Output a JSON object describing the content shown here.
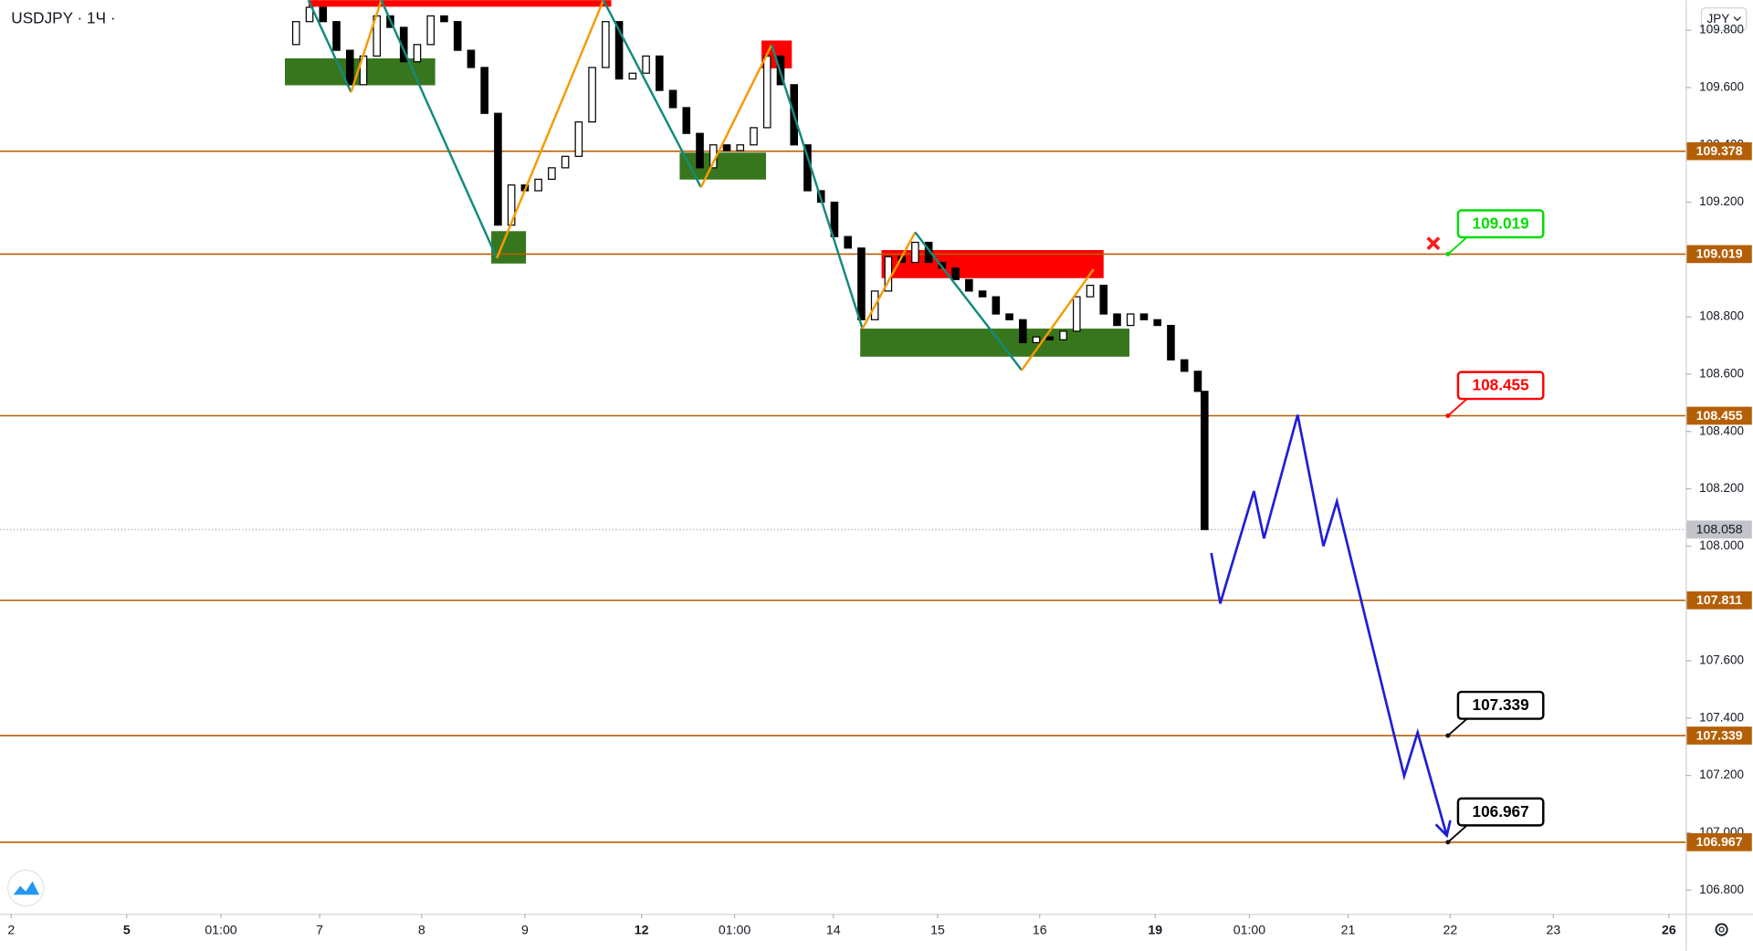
{
  "chart_data": {
    "type": "candlestick",
    "title": "USDJPY · 1Ч ·",
    "currency": "JPY",
    "xlim": [
      0,
      375.75
    ],
    "ylim": [
      106.717,
      109.905
    ],
    "grid": false,
    "xticks": [
      {
        "value": 2.5,
        "label": "2"
      },
      {
        "value": 28.25,
        "label": "5",
        "bold": true
      },
      {
        "value": 49.25,
        "label": "01:00"
      },
      {
        "value": 71.25,
        "label": "7"
      },
      {
        "value": 94,
        "label": "8"
      },
      {
        "value": 117,
        "label": "9"
      },
      {
        "value": 143,
        "label": "12",
        "bold": true
      },
      {
        "value": 163.75,
        "label": "01:00"
      },
      {
        "value": 185.75,
        "label": "14"
      },
      {
        "value": 209,
        "label": "15"
      },
      {
        "value": 231.75,
        "label": "16"
      },
      {
        "value": 257.5,
        "label": "19",
        "bold": true
      },
      {
        "value": 278.5,
        "label": "01:00"
      },
      {
        "value": 300.5,
        "label": "21"
      },
      {
        "value": 323.25,
        "label": "22"
      },
      {
        "value": 346.25,
        "label": "23"
      },
      {
        "value": 372,
        "label": "26",
        "bold": true
      }
    ],
    "yticks": [
      {
        "value": 109.8,
        "label": "109.800"
      },
      {
        "value": 109.6,
        "label": "109.600"
      },
      {
        "value": 109.4,
        "label": "109.400"
      },
      {
        "value": 109.2,
        "label": "109.200"
      },
      {
        "value": 109.0,
        "label": "109.000"
      },
      {
        "value": 108.8,
        "label": "108.800"
      },
      {
        "value": 108.6,
        "label": "108.600"
      },
      {
        "value": 108.4,
        "label": "108.400"
      },
      {
        "value": 108.2,
        "label": "108.200"
      },
      {
        "value": 108.0,
        "label": "108.000"
      },
      {
        "value": 107.8,
        "label": "107.800"
      },
      {
        "value": 107.6,
        "label": "107.600"
      },
      {
        "value": 107.4,
        "label": "107.400"
      },
      {
        "value": 107.2,
        "label": "107.200"
      },
      {
        "value": 107.0,
        "label": "107.000"
      },
      {
        "value": 106.8,
        "label": "106.800"
      }
    ],
    "candles": {
      "x": [
        66,
        69,
        72,
        75,
        78,
        81,
        84,
        87,
        90,
        93,
        96,
        99,
        102,
        105,
        108,
        111,
        114,
        117,
        120,
        123,
        126,
        129,
        132,
        135,
        138,
        141,
        144,
        147,
        150,
        153,
        156,
        159,
        162,
        165,
        168,
        171,
        174,
        177,
        180,
        183,
        186,
        189,
        192,
        195,
        198,
        201,
        204,
        207,
        210,
        213,
        216,
        219,
        222,
        225,
        228,
        231,
        234,
        237,
        240,
        243,
        246,
        249,
        252,
        255,
        258,
        261,
        264,
        267,
        268.5
      ],
      "open": [
        109.75,
        109.83,
        109.88,
        109.83,
        109.73,
        109.61,
        109.71,
        109.85,
        109.81,
        109.69,
        109.75,
        109.85,
        109.83,
        109.73,
        109.67,
        109.51,
        109.12,
        109.26,
        109.24,
        109.28,
        109.32,
        109.36,
        109.48,
        109.67,
        109.83,
        109.63,
        109.65,
        109.71,
        109.59,
        109.53,
        109.44,
        109.32,
        109.4,
        109.38,
        109.4,
        109.46,
        109.71,
        109.61,
        109.4,
        109.24,
        109.2,
        109.08,
        109.04,
        108.79,
        108.89,
        109.01,
        108.99,
        109.06,
        108.99,
        108.97,
        108.93,
        108.89,
        108.87,
        108.81,
        108.79,
        108.71,
        108.73,
        108.72,
        108.75,
        108.87,
        108.91,
        108.81,
        108.77,
        108.81,
        108.79,
        108.77,
        108.65,
        108.61,
        108.54
      ],
      "close": [
        109.83,
        109.88,
        109.83,
        109.73,
        109.61,
        109.71,
        109.85,
        109.81,
        109.69,
        109.75,
        109.85,
        109.83,
        109.73,
        109.67,
        109.51,
        109.12,
        109.26,
        109.24,
        109.28,
        109.32,
        109.36,
        109.48,
        109.67,
        109.83,
        109.63,
        109.65,
        109.71,
        109.59,
        109.53,
        109.44,
        109.32,
        109.4,
        109.38,
        109.4,
        109.46,
        109.71,
        109.61,
        109.4,
        109.24,
        109.2,
        109.08,
        109.04,
        108.79,
        108.89,
        109.01,
        108.99,
        109.06,
        108.99,
        108.97,
        108.93,
        108.89,
        108.87,
        108.81,
        108.79,
        108.71,
        108.73,
        108.72,
        108.75,
        108.87,
        108.91,
        108.81,
        108.77,
        108.81,
        108.79,
        108.77,
        108.65,
        108.61,
        108.54,
        108.058
      ],
      "up_color": "#ffffff",
      "down_color": "#000000"
    },
    "levels": {
      "values": [
        109.378,
        109.019,
        108.455,
        107.811,
        107.339,
        106.967
      ],
      "color": "#b45f06"
    },
    "last_price": 108.058,
    "zones": [
      {
        "x": [
          63.5,
          97
        ],
        "y": [
          109.702,
          109.608
        ],
        "color": "#38761d"
      },
      {
        "x": [
          109.5,
          117.25
        ],
        "y": [
          109.099,
          108.986
        ],
        "color": "#38761d"
      },
      {
        "x": [
          151.5,
          170.75
        ],
        "y": [
          109.373,
          109.279
        ],
        "color": "#38761d"
      },
      {
        "x": [
          191.75,
          251.75
        ],
        "y": [
          108.759,
          108.661
        ],
        "color": "#38761d"
      },
      {
        "x": [
          68.75,
          136.25
        ],
        "y": [
          109.905,
          109.882
        ],
        "color": "#ff0000"
      },
      {
        "x": [
          169.75,
          176.5
        ],
        "y": [
          109.764,
          109.667
        ],
        "color": "#ff0000"
      },
      {
        "x": [
          196.5,
          246
        ],
        "y": [
          109.033,
          108.935
        ],
        "color": "#ff0000"
      }
    ],
    "zigzag": {
      "x": [
        68.75,
        78.25,
        85,
        110.75,
        134.5,
        156.25,
        172,
        192.25,
        204,
        227.75,
        243.75
      ],
      "y": [
        109.905,
        109.584,
        109.905,
        109.005,
        109.905,
        109.252,
        109.749,
        108.759,
        109.095,
        108.614,
        108.966
      ],
      "colors": [
        "#138a7e",
        "#f59b00"
      ]
    },
    "forecast": {
      "x": [
        270,
        272,
        279.5,
        281.75,
        289.25,
        295,
        298,
        313,
        316,
        322.5
      ],
      "y": [
        107.976,
        107.8,
        108.192,
        108.027,
        108.458,
        108.0,
        108.156,
        107.198,
        107.35,
        106.99
      ],
      "color": "#1f1fd6"
    },
    "callouts": [
      {
        "value": 109.019,
        "color": "#00dd00"
      },
      {
        "value": 108.455,
        "color": "#ff0000"
      },
      {
        "value": 107.339,
        "color": "#000000"
      },
      {
        "value": 106.967,
        "color": "#000000"
      }
    ]
  }
}
